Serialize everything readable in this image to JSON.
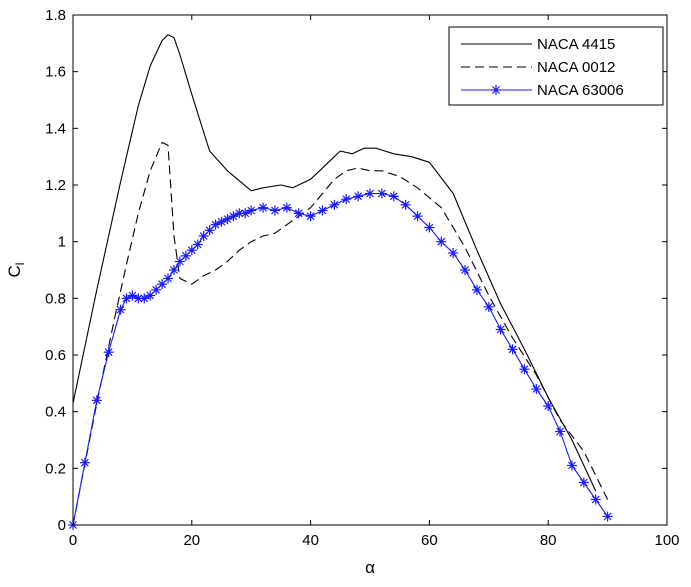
{
  "chart_data": {
    "type": "line",
    "title": "",
    "xlabel": "α",
    "ylabel": "C",
    "ylabel_subscript": "l",
    "xlim": [
      0,
      100
    ],
    "ylim": [
      0,
      1.8
    ],
    "x_ticks": [
      0,
      20,
      40,
      60,
      80,
      100
    ],
    "y_ticks": [
      0,
      0.2,
      0.4,
      0.6,
      0.8,
      1,
      1.2,
      1.4,
      1.6,
      1.8
    ],
    "grid": false,
    "legend_position": "top-right",
    "series": [
      {
        "name": "NACA 4415",
        "color": "#000000",
        "style": "solid",
        "marker": "none",
        "x": [
          0,
          4,
          8,
          11,
          13,
          15,
          16,
          17,
          18,
          20,
          23,
          26,
          30,
          32,
          35,
          37,
          40,
          43,
          45,
          47,
          49,
          51,
          54,
          57,
          60,
          64,
          68,
          72,
          76,
          80,
          84,
          88
        ],
        "y": [
          0.43,
          0.83,
          1.21,
          1.48,
          1.62,
          1.71,
          1.73,
          1.72,
          1.66,
          1.52,
          1.32,
          1.25,
          1.18,
          1.19,
          1.2,
          1.19,
          1.22,
          1.28,
          1.32,
          1.31,
          1.33,
          1.33,
          1.31,
          1.3,
          1.28,
          1.17,
          0.97,
          0.78,
          0.62,
          0.45,
          0.3,
          0.12
        ]
      },
      {
        "name": "NACA 0012",
        "color": "#000000",
        "style": "dashed",
        "marker": "none",
        "x": [
          0,
          4,
          7,
          9,
          11,
          13,
          15,
          16,
          17,
          18,
          20,
          22,
          24,
          26,
          28,
          30,
          32,
          34,
          36,
          38,
          40,
          42,
          44,
          46,
          48,
          50,
          52,
          55,
          58,
          62,
          66,
          70,
          74,
          78,
          82,
          86,
          90
        ],
        "y": [
          0,
          0.43,
          0.73,
          0.92,
          1.1,
          1.25,
          1.35,
          1.34,
          1.02,
          0.87,
          0.85,
          0.88,
          0.9,
          0.93,
          0.97,
          1.0,
          1.02,
          1.03,
          1.06,
          1.09,
          1.12,
          1.17,
          1.22,
          1.25,
          1.26,
          1.25,
          1.25,
          1.23,
          1.19,
          1.12,
          0.98,
          0.81,
          0.66,
          0.53,
          0.37,
          0.26,
          0.09
        ]
      },
      {
        "name": "NACA 63006",
        "color": "#1a1aff",
        "style": "solid",
        "marker": "asterisk",
        "x": [
          0,
          2,
          4,
          6,
          8,
          9,
          10,
          11,
          12,
          13,
          14,
          15,
          16,
          17,
          18,
          19,
          20,
          21,
          22,
          23,
          24,
          25,
          26,
          27,
          28,
          29,
          30,
          32,
          34,
          36,
          38,
          40,
          42,
          44,
          46,
          48,
          50,
          52,
          54,
          56,
          58,
          60,
          62,
          64,
          66,
          68,
          70,
          72,
          74,
          76,
          78,
          80,
          82,
          84,
          86,
          88,
          90
        ],
        "y": [
          0,
          0.22,
          0.44,
          0.61,
          0.76,
          0.8,
          0.81,
          0.8,
          0.8,
          0.81,
          0.83,
          0.85,
          0.87,
          0.9,
          0.93,
          0.95,
          0.97,
          0.99,
          1.02,
          1.04,
          1.06,
          1.07,
          1.08,
          1.09,
          1.1,
          1.1,
          1.11,
          1.12,
          1.11,
          1.12,
          1.1,
          1.09,
          1.11,
          1.13,
          1.15,
          1.16,
          1.17,
          1.17,
          1.16,
          1.13,
          1.09,
          1.05,
          1.0,
          0.96,
          0.9,
          0.83,
          0.77,
          0.69,
          0.62,
          0.55,
          0.48,
          0.42,
          0.33,
          0.21,
          0.15,
          0.09,
          0.03
        ]
      }
    ]
  }
}
